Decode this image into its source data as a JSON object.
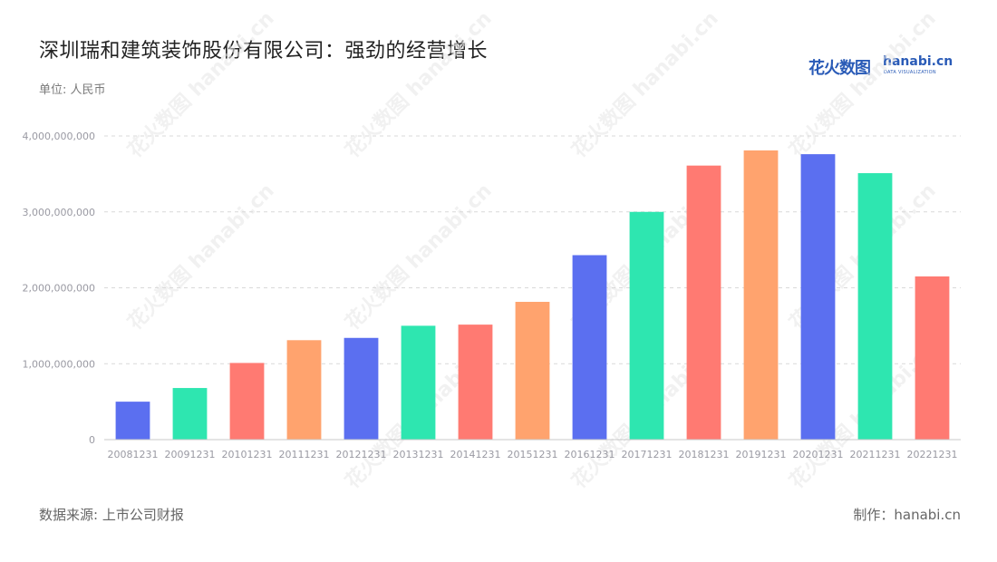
{
  "title": "深圳瑞和建筑装饰股份有限公司：强劲的经营增长",
  "unit": "单位: 人民币",
  "source": "数据来源: 上市公司财报",
  "credit": "制作：hanabi.cn",
  "logo": {
    "cn_text": "花火数图",
    "en_text": "hanabi.cn",
    "sub_text": "DATA VISUALIZATION"
  },
  "watermark": "花火数图 hanabi.cn",
  "colors": {
    "blue": "#5b6ff0",
    "green": "#2ee6b0",
    "red": "#ff7a72",
    "orange": "#ffa36e",
    "grid": "#d9d9d9",
    "axis": "#9a9aa3"
  },
  "chart_data": {
    "type": "bar",
    "categories": [
      "20081231",
      "20091231",
      "20101231",
      "20111231",
      "20121231",
      "20131231",
      "20141231",
      "20151231",
      "20161231",
      "20171231",
      "20181231",
      "20191231",
      "20201231",
      "20211231",
      "20221231"
    ],
    "values": [
      500000000,
      680000000,
      1010000000,
      1310000000,
      1340000000,
      1500000000,
      1515000000,
      1815000000,
      2430000000,
      3000000000,
      3610000000,
      3810000000,
      3760000000,
      3510000000,
      2150000000
    ],
    "bar_colors": [
      "#5b6ff0",
      "#2ee6b0",
      "#ff7a72",
      "#ffa36e",
      "#5b6ff0",
      "#2ee6b0",
      "#ff7a72",
      "#ffa36e",
      "#5b6ff0",
      "#2ee6b0",
      "#ff7a72",
      "#ffa36e",
      "#5b6ff0",
      "#2ee6b0",
      "#ff7a72"
    ],
    "yticks": [
      0,
      1000000000,
      2000000000,
      3000000000,
      4000000000
    ],
    "ytick_labels": [
      "0",
      "1,000,000,000",
      "2,000,000,000",
      "3,000,000,000",
      "4,000,000,000"
    ],
    "ylim": [
      0,
      4000000000
    ],
    "grid": true,
    "legend": "none"
  }
}
